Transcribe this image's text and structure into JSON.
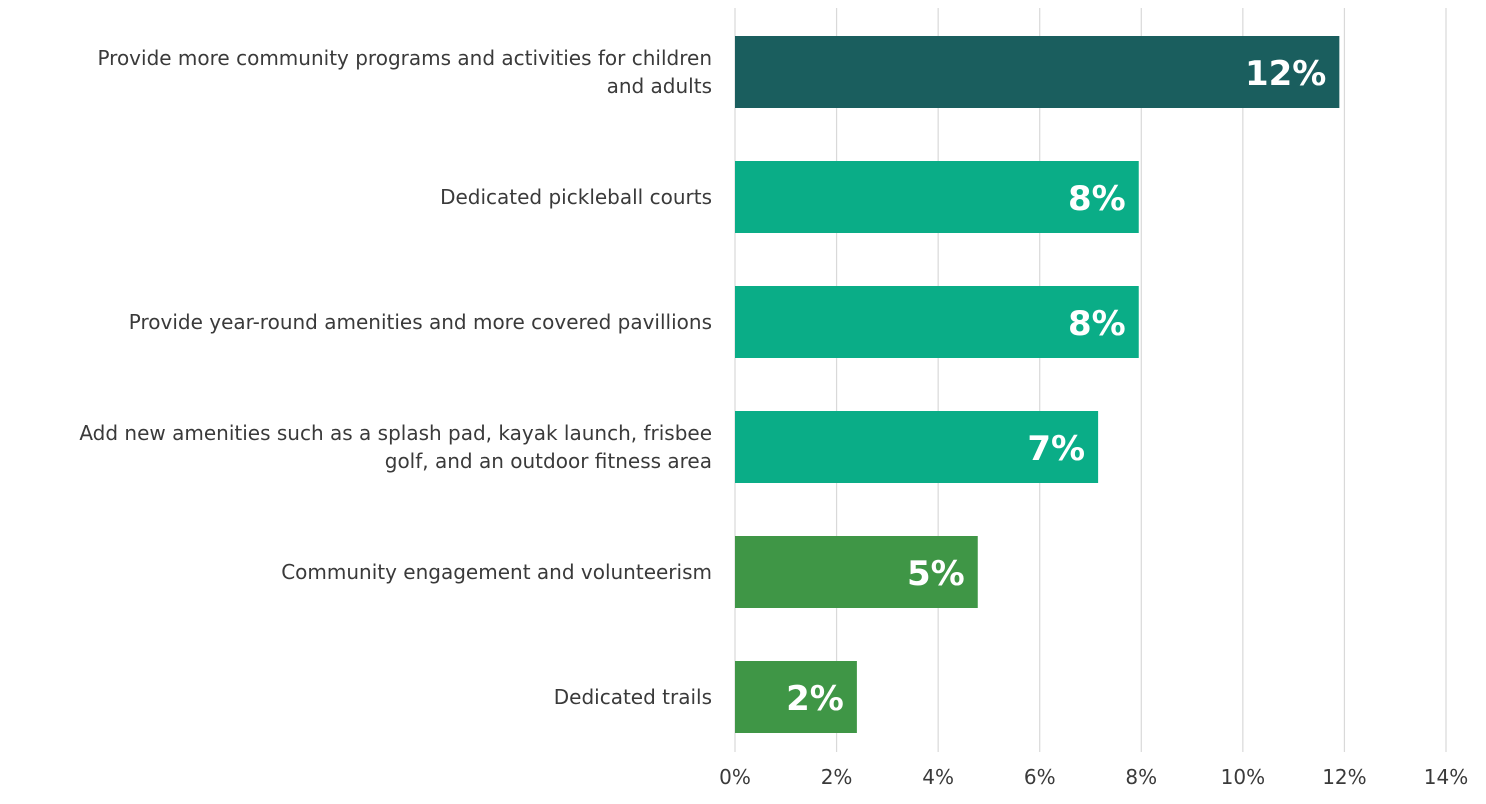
{
  "chart_data": {
    "type": "bar",
    "orientation": "horizontal",
    "categories": [
      "Provide more community programs and activities for children and adults",
      "Dedicated pickleball courts",
      "Provide year-round amenities and more covered pavillions",
      "Add new amenities such as a splash pad, kayak launch, frisbee golf, and an outdoor fitness area",
      "Community engagement and volunteerism",
      "Dedicated trails"
    ],
    "category_lines": [
      [
        "Provide more community programs and activities for children",
        "and adults"
      ],
      [
        "Dedicated pickleball courts"
      ],
      [
        "Provide year-round amenities and more covered pavillions"
      ],
      [
        "Add new amenities such as a splash pad, kayak launch, frisbee",
        "golf, and an outdoor fitness area"
      ],
      [
        "Community engagement and volunteerism"
      ],
      [
        "Dedicated trails"
      ]
    ],
    "values": [
      11.9,
      7.95,
      7.95,
      7.15,
      4.78,
      2.4
    ],
    "data_labels": [
      "12%",
      "8%",
      "8%",
      "7%",
      "5%",
      "2%"
    ],
    "bar_colors": [
      "#1a5e5e",
      "#0aad87",
      "#0aad87",
      "#0aad87",
      "#3f9646",
      "#3f9646"
    ],
    "xlim": [
      0,
      14
    ],
    "xticks": [
      0,
      2,
      4,
      6,
      8,
      10,
      12,
      14
    ],
    "xtick_labels": [
      "0%",
      "2%",
      "4%",
      "6%",
      "8%",
      "10%",
      "12%",
      "14%"
    ],
    "grid": "vertical",
    "title": "",
    "xlabel": "",
    "ylabel": ""
  }
}
